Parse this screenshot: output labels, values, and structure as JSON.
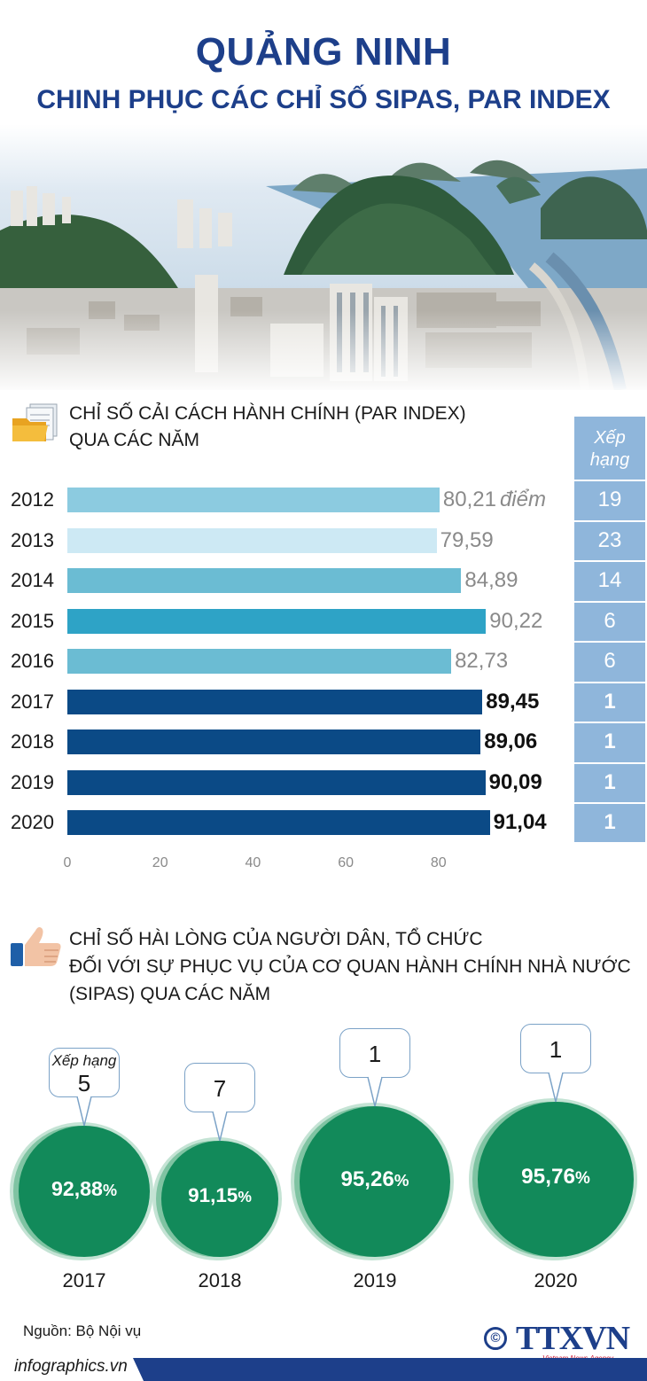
{
  "header": {
    "title": "QUẢNG NINH",
    "subtitle": "CHINH PHỤC CÁC CHỈ SỐ SIPAS, PAR INDEX"
  },
  "photo": {
    "icon": "ha-long-bay-city-photo"
  },
  "par_section": {
    "icon": "folder-documents-icon",
    "title_line1": "CHỈ SỐ CẢI CÁCH HÀNH CHÍNH (PAR INDEX)",
    "title_line2": "QUA CÁC NĂM",
    "rank_header_line1": "Xếp",
    "rank_header_line2": "hạng",
    "unit": "điểm",
    "colors": {
      "light": "#8ccbe0",
      "pale": "#cde9f4",
      "mid": "#6bbcd3",
      "teal": "#2ea3c6",
      "navy": "#0b4a86"
    }
  },
  "chart_data": [
    {
      "type": "bar",
      "orientation": "horizontal",
      "title": "CHỈ SỐ CẢI CÁCH HÀNH CHÍNH (PAR INDEX) QUA CÁC NĂM",
      "categories": [
        "2012",
        "2013",
        "2014",
        "2015",
        "2016",
        "2017",
        "2018",
        "2019",
        "2020"
      ],
      "values": [
        80.21,
        79.59,
        84.89,
        90.22,
        82.73,
        89.45,
        89.06,
        90.09,
        91.04
      ],
      "labels": [
        "80,21",
        "79,59",
        "84,89",
        "90,22",
        "82,73",
        "89,45",
        "89,06",
        "90,09",
        "91,04"
      ],
      "ranks": [
        "19",
        "23",
        "14",
        "6",
        "6",
        "1",
        "1",
        "1",
        "1"
      ],
      "bar_colors": [
        "#8ccbe0",
        "#cde9f4",
        "#6bbcd3",
        "#2ea3c6",
        "#6bbcd3",
        "#0b4a86",
        "#0b4a86",
        "#0b4a86",
        "#0b4a86"
      ],
      "ticks": [
        "0",
        "20",
        "40",
        "60",
        "80"
      ],
      "xlim": [
        0,
        100
      ],
      "xlabel": "",
      "ylabel": ""
    },
    {
      "type": "bubble",
      "title": "CHỈ SỐ HÀI LÒNG CỦA NGƯỜI DÂN, TỔ CHỨC ĐỐI VỚI SỰ PHỤC VỤ CỦA CƠ QUAN HÀNH CHÍNH NHÀ NƯỚC (SIPAS) QUA CÁC NĂM",
      "categories": [
        "2017",
        "2018",
        "2019",
        "2020"
      ],
      "values": [
        92.88,
        91.15,
        95.26,
        95.76
      ],
      "labels": [
        "92,88",
        "91,15",
        "95,26",
        "95,76"
      ],
      "ranks": [
        "5",
        "7",
        "1",
        "1"
      ],
      "rank_label": "Xếp hạng",
      "percent": "%"
    }
  ],
  "sipas_section": {
    "icon": "thumbs-up-icon",
    "title_line1": "CHỈ SỐ HÀI LÒNG CỦA NGƯỜI DÂN, TỔ CHỨC",
    "title_line2": "ĐỐI VỚI SỰ PHỤC VỤ CỦA CƠ QUAN HÀNH CHÍNH NHÀ NƯỚC",
    "title_line3": "(SIPAS) QUA CÁC NĂM",
    "circle_color": "#128a5a"
  },
  "footer": {
    "source": "Nguồn: Bộ Nội vụ",
    "copyright": "©",
    "logo": "TTXVN",
    "logo_tag": "Vietnam News Agency",
    "url": "infographics.vn"
  }
}
